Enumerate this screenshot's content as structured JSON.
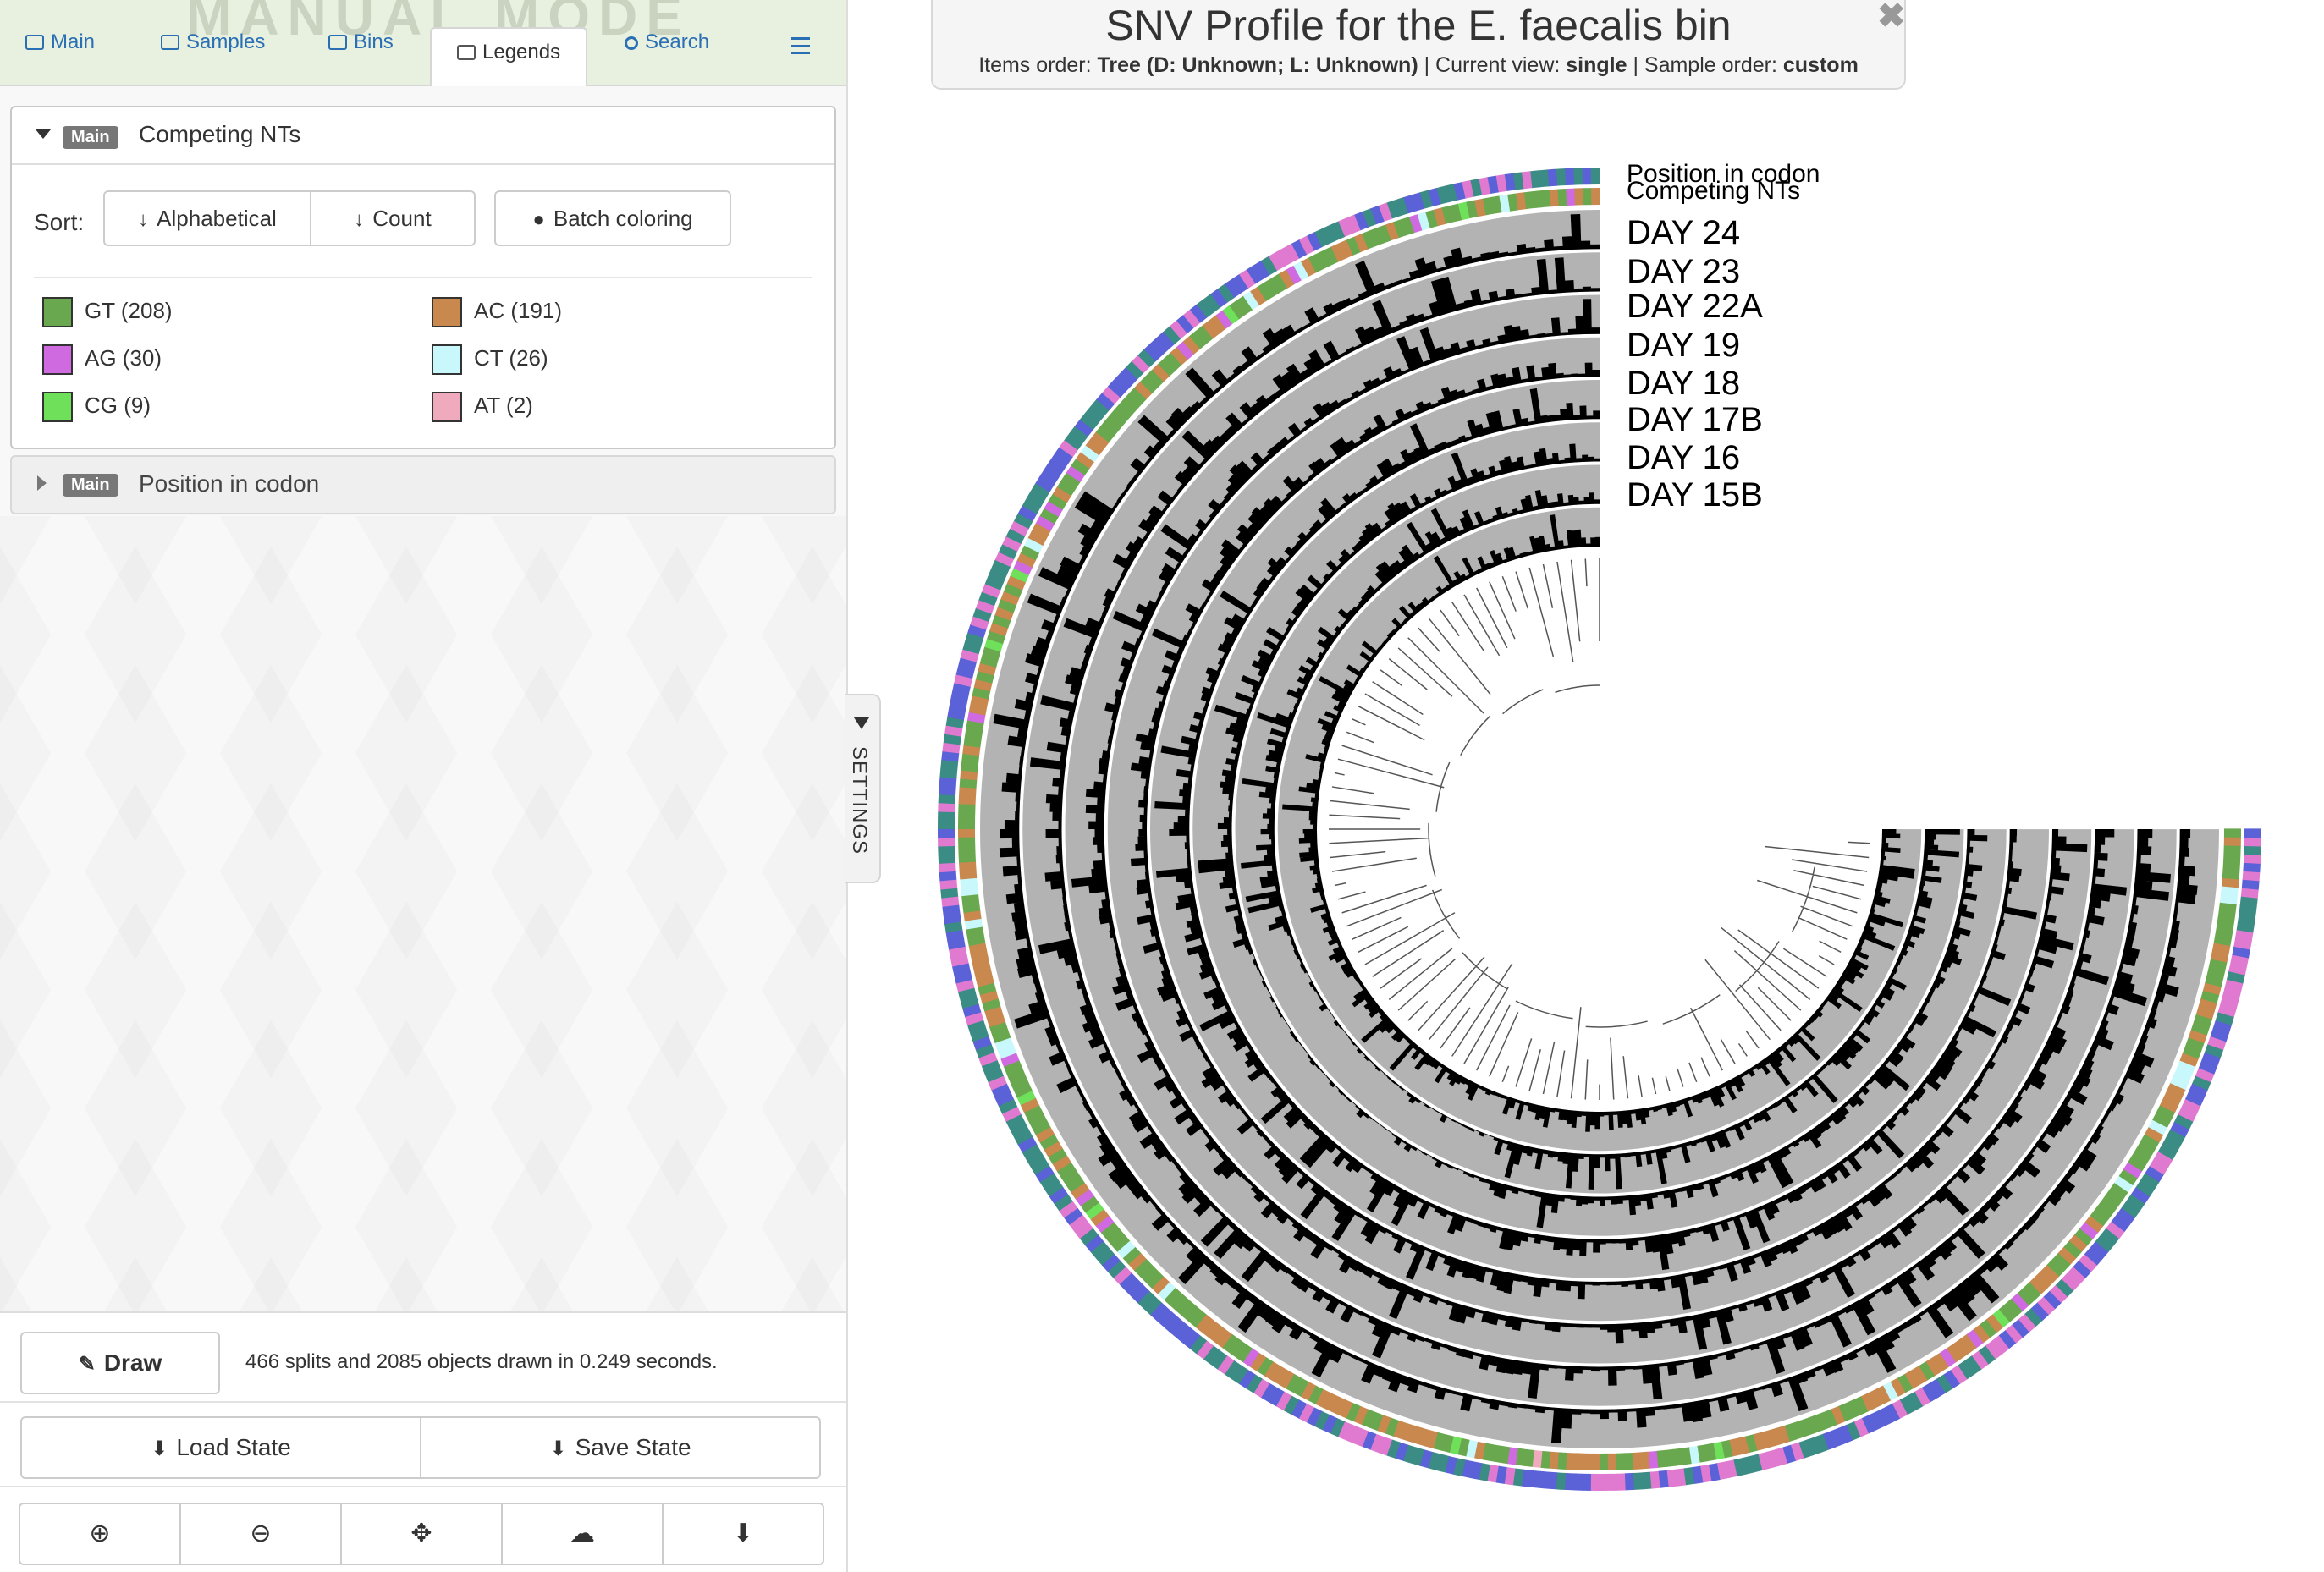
{
  "tabs": [
    {
      "label": "Main",
      "icon": "image-icon"
    },
    {
      "label": "Samples",
      "icon": "table-icon"
    },
    {
      "label": "Bins",
      "icon": "inbox-icon"
    },
    {
      "label": "Legends",
      "icon": "list-icon"
    },
    {
      "label": "Search",
      "icon": "search-icon"
    }
  ],
  "watermark": "MANUAL MODE",
  "legends": {
    "competing": {
      "badge": "Main",
      "title": "Competing NTs",
      "sort_label": "Sort:",
      "alphabetical_label": "Alphabetical",
      "count_label": "Count",
      "batch_label": "Batch coloring",
      "items": [
        {
          "label": "GT (208)",
          "color": "#6aa84f"
        },
        {
          "label": "AC (191)",
          "color": "#c8884e"
        },
        {
          "label": "AG (30)",
          "color": "#d06ae0"
        },
        {
          "label": "CT (26)",
          "color": "#c8f8fb"
        },
        {
          "label": "CG (9)",
          "color": "#6ee05a"
        },
        {
          "label": "AT (2)",
          "color": "#f0aabd"
        }
      ]
    },
    "codon": {
      "badge": "Main",
      "title": "Position in codon"
    }
  },
  "bottom": {
    "draw_label": "Draw",
    "draw_info": "466 splits and 2085 objects drawn in 0.249 seconds.",
    "load_label": "Load State",
    "save_label": "Save State"
  },
  "settings_label": "SETTINGS",
  "title": {
    "main": "SNV Profile for the E. faecalis bin",
    "items_order_label": "Items order:",
    "items_order_value": "Tree (D: Unknown; L: Unknown)",
    "current_view_label": "Current view:",
    "current_view_value": "single",
    "sample_order_label": "Sample order:",
    "sample_order_value": "custom"
  },
  "layers": [
    "Position in codon",
    "Competing NTs",
    "DAY 24",
    "DAY 23",
    "DAY 22A",
    "DAY 19",
    "DAY 18",
    "DAY 17B",
    "DAY 16",
    "DAY 15B"
  ],
  "colors": {
    "codon": [
      "#5b61d6",
      "#3c8c86",
      "#e07ad0"
    ],
    "bar_bg": "#b3b3b3"
  }
}
